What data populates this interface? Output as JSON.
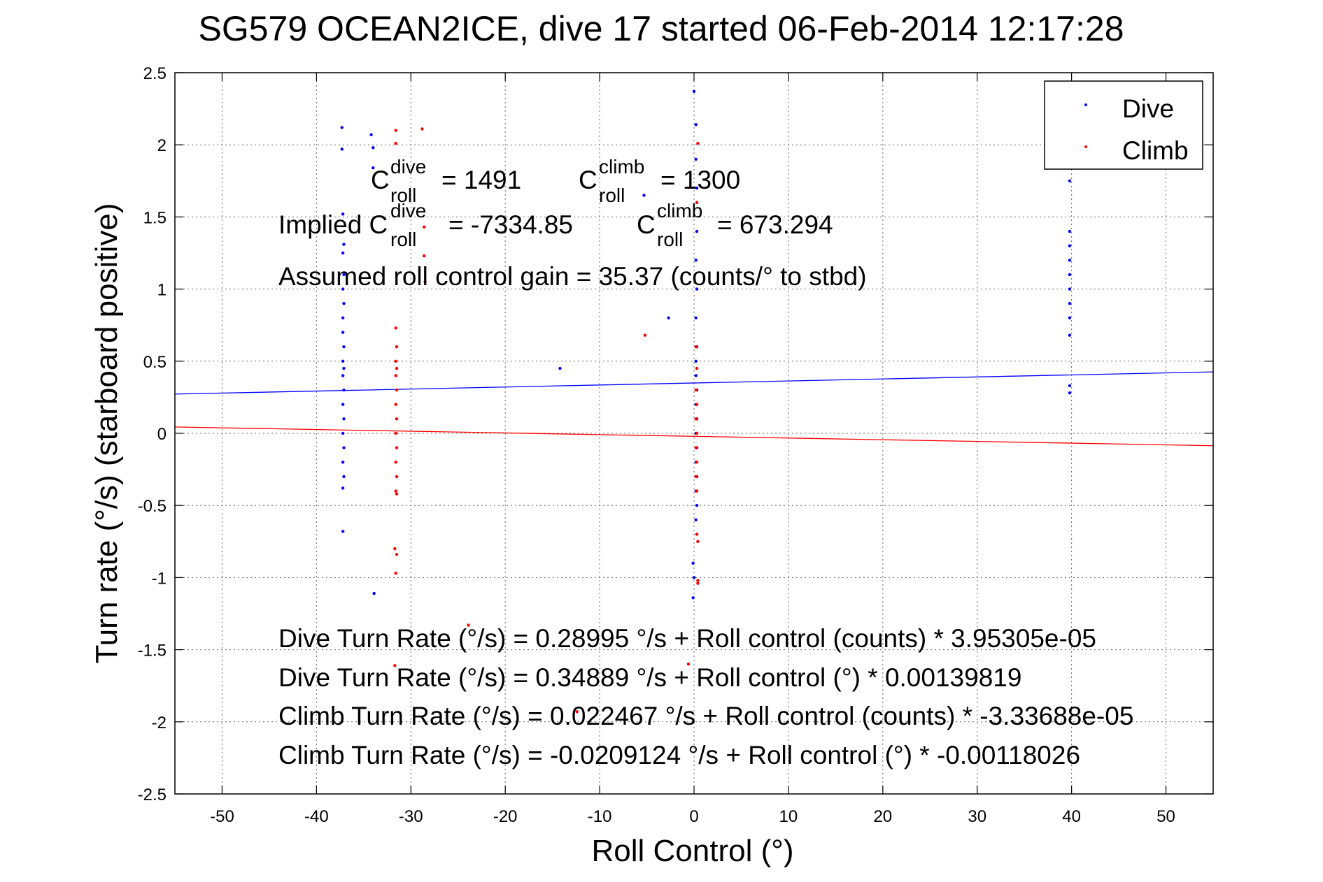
{
  "chart_data": {
    "type": "scatter",
    "title": "SG579 OCEAN2ICE, dive 17 started 06-Feb-2014 12:17:28",
    "xlabel": "Roll Control (°)",
    "ylabel": "Turn rate (°/s) (starboard positive)",
    "xlim": [
      -55,
      55
    ],
    "ylim": [
      -2.5,
      2.5
    ],
    "grid": true,
    "legend_position": "top-right",
    "x_ticks": [
      "-50",
      "-40",
      "-30",
      "-20",
      "-10",
      "0",
      "10",
      "20",
      "30",
      "40",
      "50"
    ],
    "y_ticks": [
      "2.5",
      "2",
      "1.5",
      "1",
      "0.5",
      "0",
      "-0.5",
      "-1",
      "-1.5",
      "-2",
      "-2.5"
    ],
    "series": [
      {
        "name": "Dive",
        "color": "#0000ff",
        "points": [
          [
            -37.3,
            2.12
          ],
          [
            -37.3,
            1.97
          ],
          [
            -34.2,
            2.07
          ],
          [
            -34.0,
            1.98
          ],
          [
            -34.0,
            1.84
          ],
          [
            -37.2,
            1.52
          ],
          [
            -37.1,
            1.31
          ],
          [
            -37.2,
            1.25
          ],
          [
            -37.1,
            1.1
          ],
          [
            -37.2,
            1.0
          ],
          [
            -37.1,
            0.9
          ],
          [
            -37.2,
            0.8
          ],
          [
            -37.2,
            0.7
          ],
          [
            -37.1,
            0.6
          ],
          [
            -37.2,
            0.5
          ],
          [
            -37.1,
            0.45
          ],
          [
            -37.2,
            0.4
          ],
          [
            -37.1,
            0.3
          ],
          [
            -37.2,
            0.2
          ],
          [
            -37.1,
            0.1
          ],
          [
            -37.2,
            0.0
          ],
          [
            -37.1,
            -0.1
          ],
          [
            -37.2,
            -0.2
          ],
          [
            -37.1,
            -0.3
          ],
          [
            -37.2,
            -0.38
          ],
          [
            -37.2,
            -0.68
          ],
          [
            -33.9,
            -1.11
          ],
          [
            -14.2,
            0.45
          ],
          [
            -5.3,
            1.65
          ],
          [
            -2.7,
            0.8
          ],
          [
            0.0,
            2.37
          ],
          [
            0.2,
            2.14
          ],
          [
            0.2,
            1.9
          ],
          [
            0.3,
            1.7
          ],
          [
            0.3,
            1.4
          ],
          [
            0.2,
            1.2
          ],
          [
            0.3,
            1.0
          ],
          [
            0.2,
            0.8
          ],
          [
            0.3,
            0.6
          ],
          [
            0.2,
            0.5
          ],
          [
            0.2,
            0.4
          ],
          [
            0.3,
            0.3
          ],
          [
            0.2,
            0.2
          ],
          [
            0.3,
            0.1
          ],
          [
            0.2,
            0.0
          ],
          [
            0.3,
            -0.1
          ],
          [
            0.2,
            -0.2
          ],
          [
            0.3,
            -0.3
          ],
          [
            0.2,
            -0.4
          ],
          [
            0.3,
            -0.5
          ],
          [
            0.2,
            -0.6
          ],
          [
            0.3,
            -0.7
          ],
          [
            -0.1,
            -0.9
          ],
          [
            0.0,
            -1.0
          ],
          [
            -0.1,
            -1.14
          ],
          [
            39.8,
            1.75
          ],
          [
            39.8,
            1.4
          ],
          [
            39.8,
            1.3
          ],
          [
            39.8,
            1.2
          ],
          [
            39.8,
            1.1
          ],
          [
            39.8,
            1.0
          ],
          [
            39.8,
            0.9
          ],
          [
            39.8,
            0.8
          ],
          [
            39.8,
            0.68
          ],
          [
            39.8,
            0.33
          ],
          [
            39.8,
            0.28
          ]
        ]
      },
      {
        "name": "Climb",
        "color": "#ff0000",
        "points": [
          [
            -31.6,
            2.1
          ],
          [
            -31.6,
            2.01
          ],
          [
            -28.8,
            2.11
          ],
          [
            -28.6,
            1.43
          ],
          [
            -28.6,
            1.23
          ],
          [
            -28.5,
            1.05
          ],
          [
            -31.6,
            0.73
          ],
          [
            -31.5,
            0.6
          ],
          [
            -31.6,
            0.5
          ],
          [
            -31.5,
            0.45
          ],
          [
            -31.6,
            0.4
          ],
          [
            -31.5,
            0.3
          ],
          [
            -31.6,
            0.2
          ],
          [
            -31.5,
            0.1
          ],
          [
            -31.6,
            0.0
          ],
          [
            -31.5,
            -0.1
          ],
          [
            -31.6,
            -0.2
          ],
          [
            -31.5,
            -0.3
          ],
          [
            -31.6,
            -0.4
          ],
          [
            -31.5,
            -0.42
          ],
          [
            -31.7,
            -0.8
          ],
          [
            -31.5,
            -0.84
          ],
          [
            -31.6,
            -0.97
          ],
          [
            -31.7,
            -1.61
          ],
          [
            -23.9,
            -1.33
          ],
          [
            -12.4,
            -1.93
          ],
          [
            -5.2,
            0.68
          ],
          [
            0.4,
            2.01
          ],
          [
            0.3,
            1.6
          ],
          [
            0.2,
            0.6
          ],
          [
            0.3,
            0.45
          ],
          [
            0.2,
            0.3
          ],
          [
            0.3,
            0.2
          ],
          [
            0.2,
            0.1
          ],
          [
            0.3,
            0.0
          ],
          [
            0.2,
            -0.1
          ],
          [
            0.3,
            -0.2
          ],
          [
            0.2,
            -0.3
          ],
          [
            0.3,
            -0.4
          ],
          [
            0.3,
            -0.7
          ],
          [
            0.4,
            -0.75
          ],
          [
            0.4,
            -1.02
          ],
          [
            0.4,
            -1.04
          ],
          [
            -0.6,
            -1.6
          ]
        ]
      }
    ],
    "fit_lines": [
      {
        "name": "Dive fit",
        "color": "#0000ff",
        "intercept": 0.34889,
        "slope": 0.00139819
      },
      {
        "name": "Climb fit",
        "color": "#ff0000",
        "intercept": -0.0209124,
        "slope": -0.00118026
      }
    ],
    "annotations": {
      "c_dive_base": "C",
      "c_dive_sup": "dive",
      "c_dive_sub": "roll",
      "c_dive_value": "= 1491",
      "c_climb_base": "C",
      "c_climb_sup": "climb",
      "c_climb_sub": "roll",
      "c_climb_value": "= 1300",
      "implied_label": "Implied C",
      "implied_dive_sup": "dive",
      "implied_dive_sub": "roll",
      "implied_dive_value": "= -7334.85",
      "implied_climb_base": "C",
      "implied_climb_sup": "climb",
      "implied_climb_sub": "roll",
      "implied_climb_value": "= 673.294",
      "gain_text": "Assumed roll control gain = 35.37 (counts/° to stbd)",
      "eq1": "Dive Turn Rate (°/s) = 0.28995 °/s + Roll control (counts) * 3.95305e-05",
      "eq2": "Dive Turn Rate (°/s) = 0.34889 °/s + Roll control (°) * 0.00139819",
      "eq3": "Climb Turn Rate (°/s) = 0.022467 °/s + Roll control (counts) * -3.33688e-05",
      "eq4": "Climb Turn Rate (°/s) = -0.0209124 °/s + Roll control (°) * -0.00118026"
    }
  }
}
